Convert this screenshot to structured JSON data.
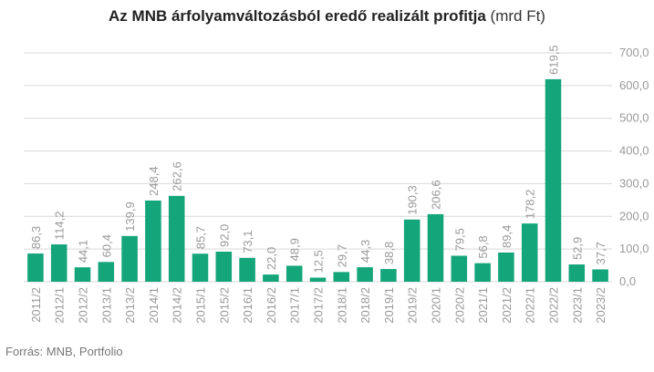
{
  "title": "Az MNB árfolyamváltozásból eredő realizált profitja",
  "title_unit": "(mrd Ft)",
  "source": "Forrás: MNB, Portfolio",
  "colors": {
    "bar": "#14a57a",
    "grid": "#d9d9d9",
    "label": "#999999",
    "tick": "#999999"
  },
  "chart_data": {
    "type": "bar",
    "categories": [
      "2011/2",
      "2012/1",
      "2012/2",
      "2013/1",
      "2013/2",
      "2014/1",
      "2014/2",
      "2015/1",
      "2015/2",
      "2016/1",
      "2016/2",
      "2017/1",
      "2017/2",
      "2018/1",
      "2018/2",
      "2019/1",
      "2019/2",
      "2020/1",
      "2020/2",
      "2021/1",
      "2021/2",
      "2022/1",
      "2022/2",
      "2023/1",
      "2023/2"
    ],
    "values": [
      86.3,
      114.2,
      44.1,
      60.4,
      139.9,
      248.4,
      262.6,
      85.7,
      92.0,
      73.1,
      22.0,
      48.9,
      12.5,
      29.7,
      44.3,
      38.8,
      190.3,
      206.6,
      79.5,
      56.8,
      89.4,
      178.2,
      619.5,
      52.9,
      37.7
    ],
    "value_labels": [
      "86,3",
      "114,2",
      "44,1",
      "60,4",
      "139,9",
      "248,4",
      "262,6",
      "85,7",
      "92,0",
      "73,1",
      "22,0",
      "48,9",
      "12,5",
      "29,7",
      "44,3",
      "38,8",
      "190,3",
      "206,6",
      "79,5",
      "56,8",
      "89,4",
      "178,2",
      "619,5",
      "52,9",
      "37,7"
    ],
    "ylim": [
      0,
      700
    ],
    "yticks": [
      0,
      100,
      200,
      300,
      400,
      500,
      600,
      700
    ],
    "ytick_labels": [
      "0,0",
      "100,0",
      "200,0",
      "300,0",
      "400,0",
      "500,0",
      "600,0",
      "700,0"
    ],
    "yaxis_side": "right",
    "grid": true
  }
}
